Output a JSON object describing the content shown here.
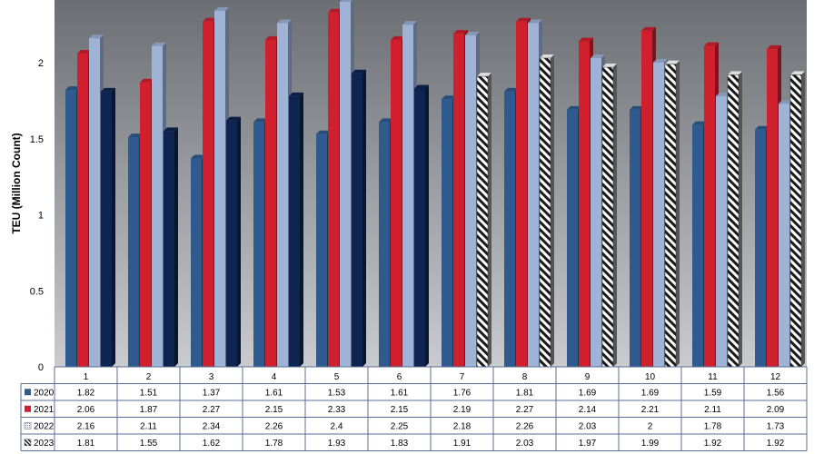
{
  "chart_data": {
    "type": "bar",
    "title": "",
    "xlabel": "",
    "ylabel": "TEU (Million Count)",
    "ylim": [
      0,
      2.4
    ],
    "yticks": [
      "0",
      "0.5",
      "1",
      "1.5",
      "2"
    ],
    "categories": [
      "1",
      "2",
      "3",
      "4",
      "5",
      "6",
      "7",
      "8",
      "9",
      "10",
      "11",
      "12"
    ],
    "series": [
      {
        "name": "2020",
        "color": "#2e5a8e",
        "values": [
          1.82,
          1.51,
          1.37,
          1.61,
          1.53,
          1.61,
          1.76,
          1.81,
          1.69,
          1.69,
          1.59,
          1.56
        ],
        "labels": [
          "1.82",
          "1.51",
          "1.37",
          "1.61",
          "1.53",
          "1.61",
          "1.76",
          "1.81",
          "1.69",
          "1.69",
          "1.59",
          "1.56"
        ]
      },
      {
        "name": "2021",
        "color": "#d0202e",
        "values": [
          2.06,
          1.87,
          2.27,
          2.15,
          2.33,
          2.15,
          2.19,
          2.27,
          2.14,
          2.21,
          2.11,
          2.09
        ],
        "labels": [
          "2.06",
          "1.87",
          "2.27",
          "2.15",
          "2.33",
          "2.15",
          "2.19",
          "2.27",
          "2.14",
          "2.21",
          "2.11",
          "2.09"
        ]
      },
      {
        "name": "2022",
        "color": "#9fb3d6",
        "values": [
          2.16,
          2.11,
          2.34,
          2.26,
          2.4,
          2.25,
          2.18,
          2.26,
          2.03,
          2,
          1.78,
          1.73
        ],
        "labels": [
          "2.16",
          "2.11",
          "2.34",
          "2.26",
          "2.4",
          "2.25",
          "2.18",
          "2.26",
          "2.03",
          "2",
          "1.78",
          "1.73"
        ]
      },
      {
        "name": "2023",
        "color": "#0d2550",
        "values": [
          1.81,
          1.55,
          1.62,
          1.78,
          1.93,
          1.83,
          1.91,
          2.03,
          1.97,
          1.99,
          1.92,
          1.92
        ],
        "labels": [
          "1.81",
          "1.55",
          "1.62",
          "1.78",
          "1.93",
          "1.83",
          "1.91",
          "2.03",
          "1.97",
          "1.99",
          "1.92",
          "1.92"
        ],
        "hatched_from_index": 6
      }
    ],
    "legend": "data-table-left",
    "grid": false
  }
}
